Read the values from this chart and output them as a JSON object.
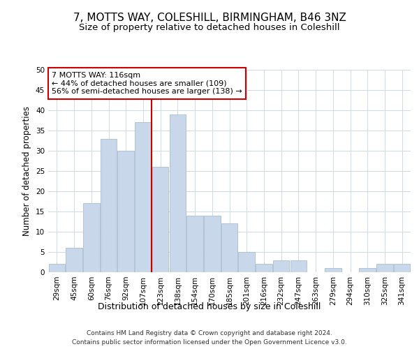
{
  "title": "7, MOTTS WAY, COLESHILL, BIRMINGHAM, B46 3NZ",
  "subtitle": "Size of property relative to detached houses in Coleshill",
  "xlabel": "Distribution of detached houses by size in Coleshill",
  "ylabel": "Number of detached properties",
  "bar_labels": [
    "29sqm",
    "45sqm",
    "60sqm",
    "76sqm",
    "92sqm",
    "107sqm",
    "123sqm",
    "138sqm",
    "154sqm",
    "170sqm",
    "185sqm",
    "201sqm",
    "216sqm",
    "232sqm",
    "247sqm",
    "263sqm",
    "279sqm",
    "294sqm",
    "310sqm",
    "325sqm",
    "341sqm"
  ],
  "bar_values": [
    2,
    6,
    17,
    33,
    30,
    37,
    26,
    39,
    14,
    14,
    12,
    5,
    2,
    3,
    3,
    0,
    1,
    0,
    1,
    2,
    2
  ],
  "bar_color": "#c8d8ea",
  "bar_edge_color": "#aabfcf",
  "grid_color": "#d0dae2",
  "vline_x": 5.5,
  "vline_color": "#cc0000",
  "annotation_line1": "7 MOTTS WAY: 116sqm",
  "annotation_line2": "← 44% of detached houses are smaller (109)",
  "annotation_line3": "56% of semi-detached houses are larger (138) →",
  "annotation_box_color": "#cc0000",
  "annotation_box_fill": "#ffffff",
  "footer_text": "Contains HM Land Registry data © Crown copyright and database right 2024.\nContains public sector information licensed under the Open Government Licence v3.0.",
  "ylim": [
    0,
    50
  ],
  "yticks": [
    0,
    5,
    10,
    15,
    20,
    25,
    30,
    35,
    40,
    45,
    50
  ],
  "title_fontsize": 11,
  "subtitle_fontsize": 9.5,
  "ylabel_fontsize": 8.5,
  "xlabel_fontsize": 9,
  "tick_fontsize": 7.5,
  "footer_fontsize": 6.5,
  "annot_fontsize": 8
}
